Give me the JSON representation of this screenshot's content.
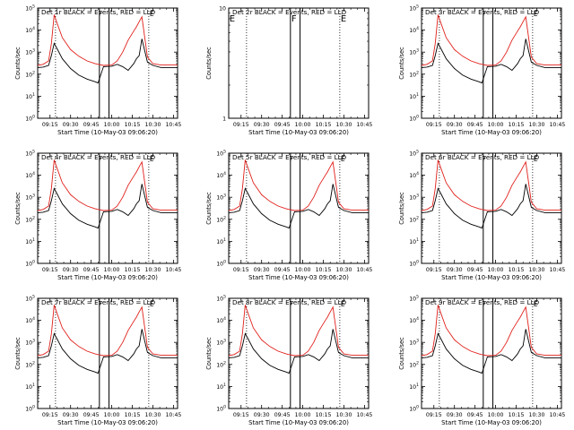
{
  "colors": {
    "events": "#000000",
    "lld": "#e0201b",
    "background": "#ffffff"
  },
  "panels": [
    {
      "title": "Det 1r BLACK = Events, RED = LLD",
      "xlabel": "Start Time (10-May-03 09:06:20)",
      "ylabel": "Counts/sec",
      "x_ticks": [
        "09:15",
        "09:30",
        "09:45",
        "10:00",
        "10:15",
        "10:30",
        "10:45"
      ],
      "y_scale": "log",
      "y_ticks": [
        "10^0",
        "10^1",
        "10^2",
        "10^3",
        "10^4",
        "10^5"
      ],
      "markers": [
        "F",
        "E"
      ],
      "has_data": true
    },
    {
      "title": "Det 2r BLACK = Events, RED = LLD",
      "xlabel": "Start Time (10-May-03 09:06:20)",
      "ylabel": "Counts/sec",
      "x_ticks": [
        "09:15",
        "09:30",
        "09:45",
        "10:00",
        "10:15",
        "10:30",
        "10:45"
      ],
      "y_scale": "log",
      "y_ticks": [
        "1",
        "10"
      ],
      "markers": [
        "E",
        "F",
        "E"
      ],
      "has_data": false
    },
    {
      "title": "Det 3r BLACK = Events, RED = LLD",
      "xlabel": "Start Time (10-May-03 09:06:20)",
      "ylabel": "Counts/sec",
      "x_ticks": [
        "09:15",
        "09:30",
        "09:45",
        "10:00",
        "10:15",
        "10:30",
        "10:45"
      ],
      "y_scale": "log",
      "y_ticks": [
        "10^0",
        "10^1",
        "10^2",
        "10^3",
        "10^4",
        "10^5"
      ],
      "markers": [
        "F",
        "E"
      ],
      "has_data": true
    },
    {
      "title": "Det 4r BLACK = Events, RED = LLD",
      "xlabel": "Start Time (10-May-03 09:06:20)",
      "ylabel": "Counts/sec",
      "x_ticks": [
        "09:15",
        "09:30",
        "09:45",
        "10:00",
        "10:15",
        "10:30",
        "10:45"
      ],
      "y_scale": "log",
      "y_ticks": [
        "10^0",
        "10^1",
        "10^2",
        "10^3",
        "10^4",
        "10^5"
      ],
      "markers": [
        "F",
        "E"
      ],
      "has_data": true
    },
    {
      "title": "Det 5r BLACK = Events, RED = LLD",
      "xlabel": "Start Time (10-May-03 09:06:20)",
      "ylabel": "Counts/sec",
      "x_ticks": [
        "09:15",
        "09:30",
        "09:45",
        "10:00",
        "10:15",
        "10:30",
        "10:45"
      ],
      "y_scale": "log",
      "y_ticks": [
        "10^0",
        "10^1",
        "10^2",
        "10^3",
        "10^4",
        "10^5"
      ],
      "markers": [
        "F",
        "E"
      ],
      "has_data": true
    },
    {
      "title": "Det 6r BLACK = Events, RED = LLD",
      "xlabel": "Start Time (10-May-03 09:06:20)",
      "ylabel": "Counts/sec",
      "x_ticks": [
        "09:15",
        "09:30",
        "09:45",
        "10:00",
        "10:15",
        "10:30",
        "10:45"
      ],
      "y_scale": "log",
      "y_ticks": [
        "10^0",
        "10^1",
        "10^2",
        "10^3",
        "10^4",
        "10^5"
      ],
      "markers": [
        "F",
        "E"
      ],
      "has_data": true
    },
    {
      "title": "Det 7r BLACK = Events, RED = LLD",
      "xlabel": "Start Time (10-May-03 09:06:20)",
      "ylabel": "Counts/sec",
      "x_ticks": [
        "09:15",
        "09:30",
        "09:45",
        "10:00",
        "10:15",
        "10:30",
        "10:45"
      ],
      "y_scale": "log",
      "y_ticks": [
        "10^0",
        "10^1",
        "10^2",
        "10^3",
        "10^4",
        "10^5"
      ],
      "markers": [
        "F",
        "E"
      ],
      "has_data": true
    },
    {
      "title": "Det 8r BLACK = Events, RED = LLD",
      "xlabel": "Start Time (10-May-03 09:06:20)",
      "ylabel": "Counts/sec",
      "x_ticks": [
        "09:15",
        "09:30",
        "09:45",
        "10:00",
        "10:15",
        "10:30",
        "10:45"
      ],
      "y_scale": "log",
      "y_ticks": [
        "10^0",
        "10^1",
        "10^2",
        "10^3",
        "10^4",
        "10^5"
      ],
      "markers": [
        "F",
        "E"
      ],
      "has_data": true
    },
    {
      "title": "Det 9r BLACK = Events, RED = LLD",
      "xlabel": "Start Time (10-May-03 09:06:20)",
      "ylabel": "Counts/sec",
      "x_ticks": [
        "09:15",
        "09:30",
        "09:45",
        "10:00",
        "10:15",
        "10:30",
        "10:45"
      ],
      "y_scale": "log",
      "y_ticks": [
        "10^0",
        "10^1",
        "10^2",
        "10^3",
        "10^4",
        "10^5"
      ],
      "markers": [
        "F",
        "E"
      ],
      "has_data": true
    }
  ],
  "chart_data": {
    "type": "line",
    "y_scale": "log",
    "x_unit": "time",
    "xlim": [
      "09:06",
      "10:48"
    ],
    "ylim": [
      1,
      100000
    ],
    "x": [
      "09:06",
      "09:10",
      "09:14",
      "09:16",
      "09:18",
      "09:20",
      "09:24",
      "09:30",
      "09:36",
      "09:42",
      "09:48",
      "09:50",
      "09:54",
      "10:00",
      "10:04",
      "10:08",
      "10:12",
      "10:16",
      "10:18",
      "10:20",
      "10:22",
      "10:26",
      "10:30",
      "10:36",
      "10:42",
      "10:48"
    ],
    "series": [
      {
        "name": "Events",
        "color": "#000000",
        "values": [
          200,
          210,
          250,
          700,
          2500,
          1500,
          500,
          180,
          90,
          60,
          45,
          40,
          220,
          230,
          280,
          220,
          150,
          300,
          500,
          700,
          4000,
          350,
          250,
          200,
          200,
          200
        ]
      },
      {
        "name": "LLD",
        "color": "#e0201b",
        "values": [
          250,
          280,
          400,
          2500,
          50000,
          22000,
          4500,
          1300,
          650,
          400,
          300,
          280,
          250,
          260,
          400,
          1000,
          3500,
          9000,
          14000,
          24000,
          40000,
          600,
          300,
          260,
          260,
          260
        ]
      }
    ]
  }
}
